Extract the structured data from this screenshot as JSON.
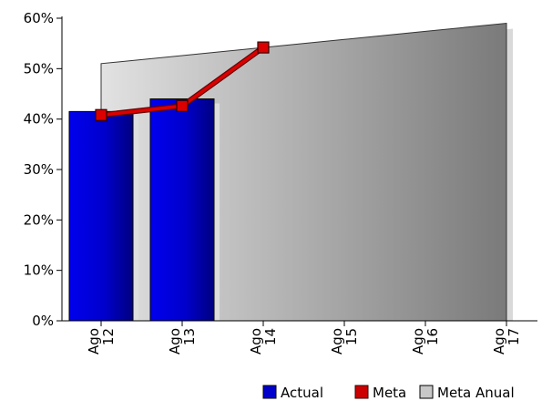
{
  "chart_data": {
    "type": "bar",
    "categories": [
      "Ago 12",
      "Ago 13",
      "Ago 14",
      "Ago 15",
      "Ago 16",
      "Ago 17"
    ],
    "category_lines": [
      [
        "Ago",
        "12"
      ],
      [
        "Ago",
        "13"
      ],
      [
        "Ago",
        "14"
      ],
      [
        "Ago",
        "15"
      ],
      [
        "Ago",
        "16"
      ],
      [
        "Ago",
        "17"
      ]
    ],
    "series": [
      {
        "name": "Actual",
        "type": "bar",
        "values": [
          41.5,
          44,
          null,
          null,
          null,
          null
        ],
        "color": "#0000cc"
      },
      {
        "name": "Meta",
        "type": "line",
        "values": [
          40.8,
          42.6,
          54.2,
          null,
          null,
          null
        ],
        "color": "#cc0000"
      },
      {
        "name": "Meta Anual",
        "type": "area",
        "values": [
          51,
          52.6,
          54.2,
          55.8,
          57.4,
          59
        ],
        "color": "#c8c8c8"
      }
    ],
    "y_ticks": [
      "0%",
      "10%",
      "20%",
      "30%",
      "40%",
      "50%",
      "60%"
    ],
    "ylim": [
      0,
      60
    ],
    "y_unit": "%",
    "grid": false,
    "legend_position": "bottom-right",
    "legend": [
      "Actual",
      "Meta",
      "Meta Anual"
    ],
    "title": "",
    "xlabel": "",
    "ylabel": ""
  }
}
